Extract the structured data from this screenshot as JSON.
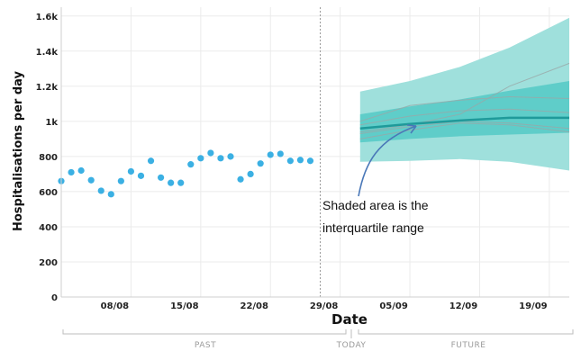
{
  "chart_data": {
    "type": "line",
    "xlabel": "Date",
    "ylabel": "Hospitalisations per day",
    "ylim": [
      0,
      1650
    ],
    "y_ticks": [
      0,
      200,
      400,
      600,
      800,
      1000,
      1200,
      1400,
      1600
    ],
    "y_tick_labels": [
      "0",
      "200",
      "400",
      "600",
      "800",
      "1k",
      "1.2k",
      "1.4k",
      "1.6k"
    ],
    "x_ticks": [
      "2020-08-08",
      "2020-08-15",
      "2020-08-22",
      "2020-08-29",
      "2020-09-05",
      "2020-09-12",
      "2020-09-19"
    ],
    "x_tick_labels": [
      "08/08",
      "15/08",
      "22/08",
      "29/08",
      "05/09",
      "12/09",
      "19/09"
    ],
    "xlim": [
      "2020-08-01",
      "2020-09-21"
    ],
    "grid": true,
    "today": "2020-08-27",
    "forecast_start": "2020-08-31",
    "observed": {
      "dates": [
        "2020-08-01",
        "2020-08-02",
        "2020-08-03",
        "2020-08-04",
        "2020-08-05",
        "2020-08-06",
        "2020-08-07",
        "2020-08-08",
        "2020-08-09",
        "2020-08-10",
        "2020-08-11",
        "2020-08-12",
        "2020-08-13",
        "2020-08-14",
        "2020-08-15",
        "2020-08-16",
        "2020-08-17",
        "2020-08-18",
        "2020-08-19",
        "2020-08-20",
        "2020-08-21",
        "2020-08-22",
        "2020-08-23",
        "2020-08-24",
        "2020-08-25",
        "2020-08-26"
      ],
      "values": [
        660,
        710,
        720,
        665,
        605,
        585,
        660,
        715,
        690,
        775,
        680,
        650,
        650,
        755,
        790,
        820,
        790,
        800,
        670,
        700,
        760,
        810,
        815,
        775,
        780,
        775
      ]
    },
    "forecast": {
      "dates": [
        "2020-08-31",
        "2020-09-05",
        "2020-09-10",
        "2020-09-15",
        "2020-09-21"
      ],
      "median": [
        960,
        985,
        1005,
        1020,
        1020
      ],
      "iqr_low": [
        880,
        900,
        915,
        925,
        935
      ],
      "iqr_high": [
        1040,
        1085,
        1125,
        1175,
        1230
      ],
      "outer_low": [
        770,
        775,
        785,
        770,
        720
      ],
      "outer_high": [
        1170,
        1230,
        1310,
        1420,
        1590
      ],
      "sample_paths": [
        [
          1000,
          1090,
          1120,
          1140,
          1130
        ],
        [
          940,
          980,
          1040,
          1200,
          1330
        ],
        [
          980,
          1030,
          1060,
          1070,
          1050
        ],
        [
          900,
          950,
          990,
          980,
          940
        ],
        [
          930,
          970,
          1000,
          990,
          960
        ]
      ]
    },
    "annotation": [
      "Shaded area is the",
      "interquartile range"
    ],
    "period_labels": [
      "PAST",
      "TODAY",
      "FUTURE"
    ],
    "colors": {
      "points": "#3bb0e3",
      "median": "#1f9a9a",
      "iqr": "#5fcdc9",
      "outer": "#9fe0dc",
      "paths": "#9aa7a7",
      "arrow": "#4a78b8",
      "today_line": "#999999",
      "grid": "#ebebeb",
      "brace": "#bdbdbd"
    }
  }
}
